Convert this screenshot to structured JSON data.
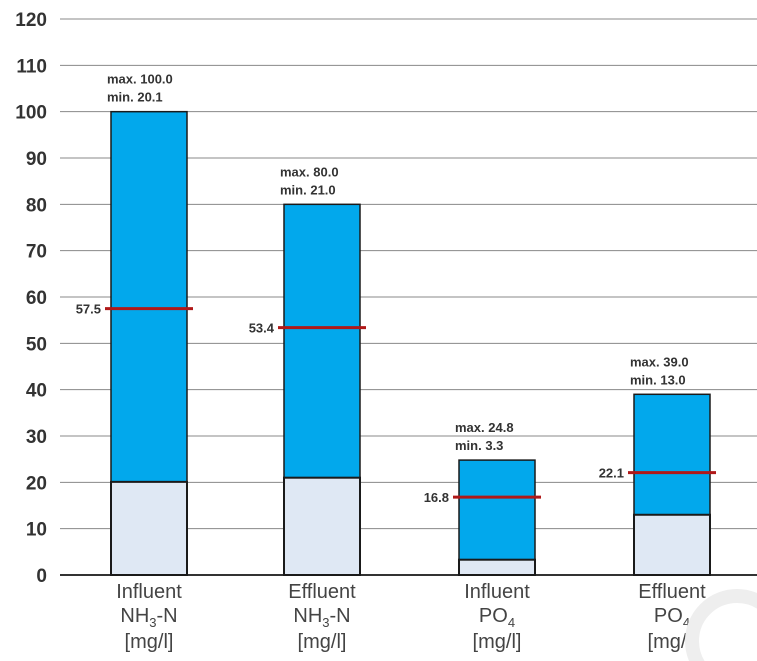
{
  "chart_data": {
    "type": "bar",
    "title": "",
    "xlabel": "",
    "ylabel": "",
    "ylim": [
      0,
      120
    ],
    "yticks": [
      0,
      10,
      20,
      30,
      40,
      50,
      60,
      70,
      80,
      90,
      100,
      110,
      120
    ],
    "grid": true,
    "categories": [
      {
        "line1": "Influent",
        "line2_main": "NH",
        "line2_sub": "3",
        "line2_tail": "-N",
        "line3": "[mg/l]"
      },
      {
        "line1": "Effluent",
        "line2_main": "NH",
        "line2_sub": "3",
        "line2_tail": "-N",
        "line3": "[mg/l]"
      },
      {
        "line1": "Influent",
        "line2_main": "PO",
        "line2_sub": "4",
        "line2_tail": "",
        "line3": "[mg/l]"
      },
      {
        "line1": "Effluent",
        "line2_main": "PO",
        "line2_sub": "4",
        "line2_tail": "",
        "line3": "[mg/l]"
      }
    ],
    "series": [
      {
        "key": "min",
        "values": [
          20.1,
          21.0,
          3.3,
          13.0
        ]
      },
      {
        "key": "max",
        "values": [
          100.0,
          80.0,
          24.8,
          39.0
        ]
      },
      {
        "key": "mean",
        "values": [
          57.5,
          53.4,
          16.8,
          22.1
        ]
      }
    ],
    "annotations": [
      {
        "max_text": "max. 100.0",
        "min_text": "min.   20.1",
        "mean_text": "57.5"
      },
      {
        "max_text": "max. 80.0",
        "min_text": "min.  21.0",
        "mean_text": "53.4"
      },
      {
        "max_text": "max. 24.8",
        "min_text": "min.    3.3",
        "mean_text": "16.8"
      },
      {
        "max_text": "max. 39.0",
        "min_text": "min.  13.0",
        "mean_text": "22.1"
      }
    ],
    "colors": {
      "range_fill": "#02a8ec",
      "min_fill": "#dfe8f4",
      "mean_line": "#b01818",
      "grid": "#888888",
      "outline": "#1a1a1a"
    }
  }
}
